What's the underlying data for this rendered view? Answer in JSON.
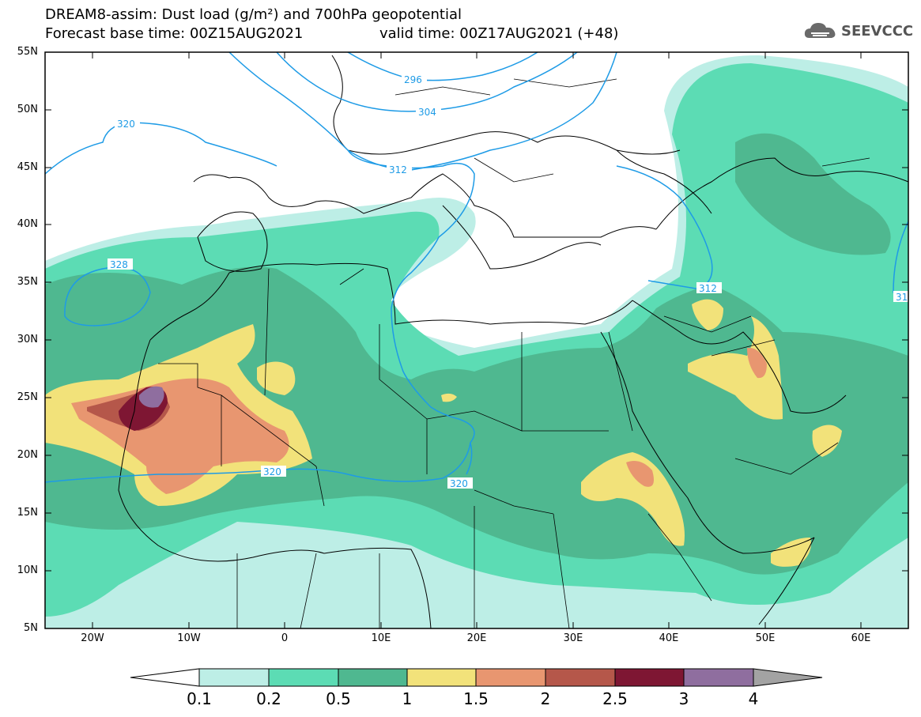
{
  "header": {
    "title_line1": "DREAM8-assim: Dust load (g/m²) and 700hPa geopotential",
    "title_line2_base": "Forecast base time: 00Z15AUG2021",
    "title_line2_valid": "valid time: 00Z17AUG2021 (+48)"
  },
  "logo": {
    "text": "SEEVCCC",
    "icon": "cloud-logo-icon"
  },
  "map": {
    "lat_labels": [
      "55N",
      "50N",
      "45N",
      "40N",
      "35N",
      "30N",
      "25N",
      "20N",
      "15N",
      "10N",
      "5N"
    ],
    "lon_labels": [
      "20W",
      "10W",
      "0",
      "10E",
      "20E",
      "30E",
      "40E",
      "50E",
      "60E"
    ],
    "contour_labels": [
      "296",
      "304",
      "312",
      "320",
      "328",
      "312",
      "320",
      "320",
      "31"
    ],
    "colors": {
      "c01": "#bdeee6",
      "c02": "#5cdcb4",
      "c05": "#4fb890",
      "c1": "#f2e27a",
      "c15": "#e89670",
      "c2": "#b5574a",
      "c25": "#7e1633",
      "c3": "#8f6e9f",
      "c4": "#a3a3a3",
      "geopotential": "#1e9be6"
    }
  },
  "colorbar": {
    "labels": [
      "0.1",
      "0.2",
      "0.5",
      "1",
      "1.5",
      "2",
      "2.5",
      "3",
      "4"
    ]
  }
}
